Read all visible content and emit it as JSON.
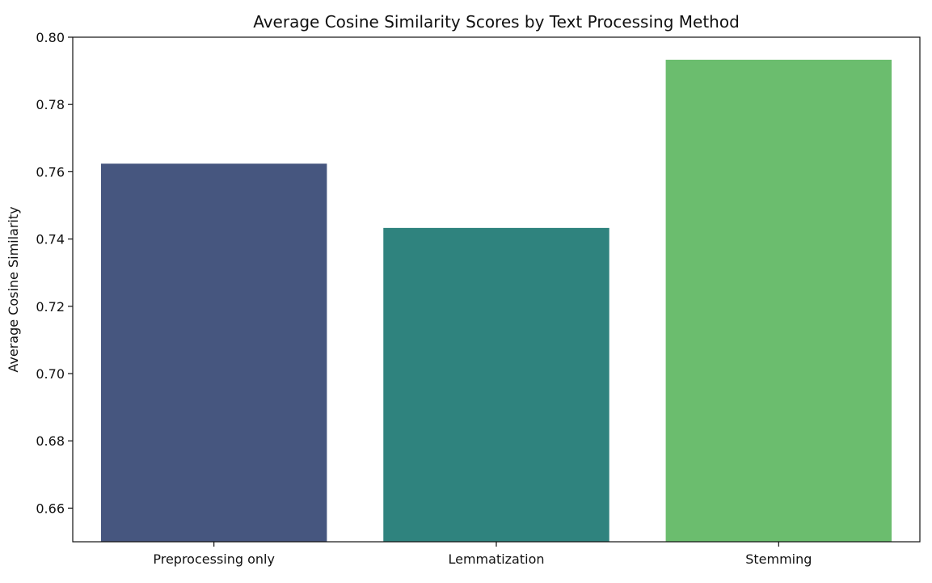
{
  "chart_data": {
    "type": "bar",
    "title": "Average Cosine Similarity Scores by Text Processing Method",
    "xlabel": "",
    "ylabel": "Average Cosine Similarity",
    "categories": [
      "Preprocessing only",
      "Lemmatization",
      "Stemming"
    ],
    "values": [
      0.7624,
      0.7433,
      0.7933
    ],
    "colors": [
      "#46567f",
      "#2f837e",
      "#6bbd6e"
    ],
    "ylim": [
      0.65,
      0.8
    ],
    "yticks": [
      0.66,
      0.68,
      0.7,
      0.72,
      0.74,
      0.76,
      0.78,
      0.8
    ],
    "ytick_labels": [
      "0.66",
      "0.68",
      "0.70",
      "0.72",
      "0.74",
      "0.76",
      "0.78",
      "0.80"
    ],
    "grid": false,
    "legend": "none"
  }
}
